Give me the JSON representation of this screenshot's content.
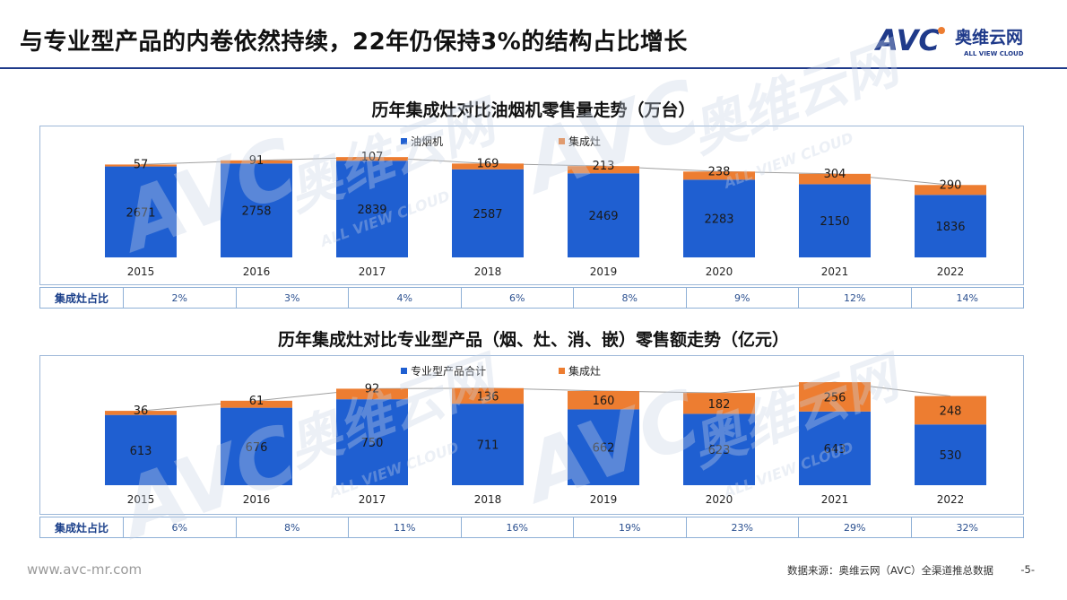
{
  "header": {
    "title": "与专业型产品的内卷依然持续，22年仍保持3%的结构占比增长",
    "logo_text": "AVC",
    "logo_cn": "奥维云网",
    "logo_en": "ALL VIEW CLOUD"
  },
  "colors": {
    "series_blue": "#1f5fd1",
    "series_orange": "#ed7d31",
    "brand": "#1f3a8a"
  },
  "chart_data": [
    {
      "type": "bar",
      "stacked": true,
      "title": "历年集成灶对比油烟机零售量走势（万台）",
      "categories": [
        "2015",
        "2016",
        "2017",
        "2018",
        "2019",
        "2020",
        "2021",
        "2022"
      ],
      "series": [
        {
          "name": "油烟机",
          "values": [
            2671,
            2758,
            2839,
            2587,
            2469,
            2283,
            2150,
            1836
          ]
        },
        {
          "name": "集成灶",
          "values": [
            57,
            91,
            107,
            169,
            213,
            238,
            304,
            290
          ]
        }
      ],
      "legend": "top",
      "share_row": {
        "label": "集成灶占比",
        "values": [
          "2%",
          "3%",
          "4%",
          "6%",
          "8%",
          "9%",
          "12%",
          "14%"
        ]
      }
    },
    {
      "type": "bar",
      "stacked": true,
      "title": "历年集成灶对比专业型产品（烟、灶、消、嵌）零售额走势（亿元）",
      "categories": [
        "2015",
        "2016",
        "2017",
        "2018",
        "2019",
        "2020",
        "2021",
        "2022"
      ],
      "series": [
        {
          "name": "专业型产品合计",
          "values": [
            613,
            676,
            750,
            711,
            662,
            623,
            643,
            530
          ]
        },
        {
          "name": "集成灶",
          "values": [
            36,
            61,
            92,
            136,
            160,
            182,
            256,
            248
          ]
        }
      ],
      "legend": "top",
      "share_row": {
        "label": "集成灶占比",
        "values": [
          "6%",
          "8%",
          "11%",
          "16%",
          "19%",
          "23%",
          "29%",
          "32%"
        ]
      }
    }
  ],
  "footer": {
    "url": "www.avc-mr.com",
    "source": "数据来源：奥维云网（AVC）全渠道推总数据",
    "page": "-5-"
  }
}
